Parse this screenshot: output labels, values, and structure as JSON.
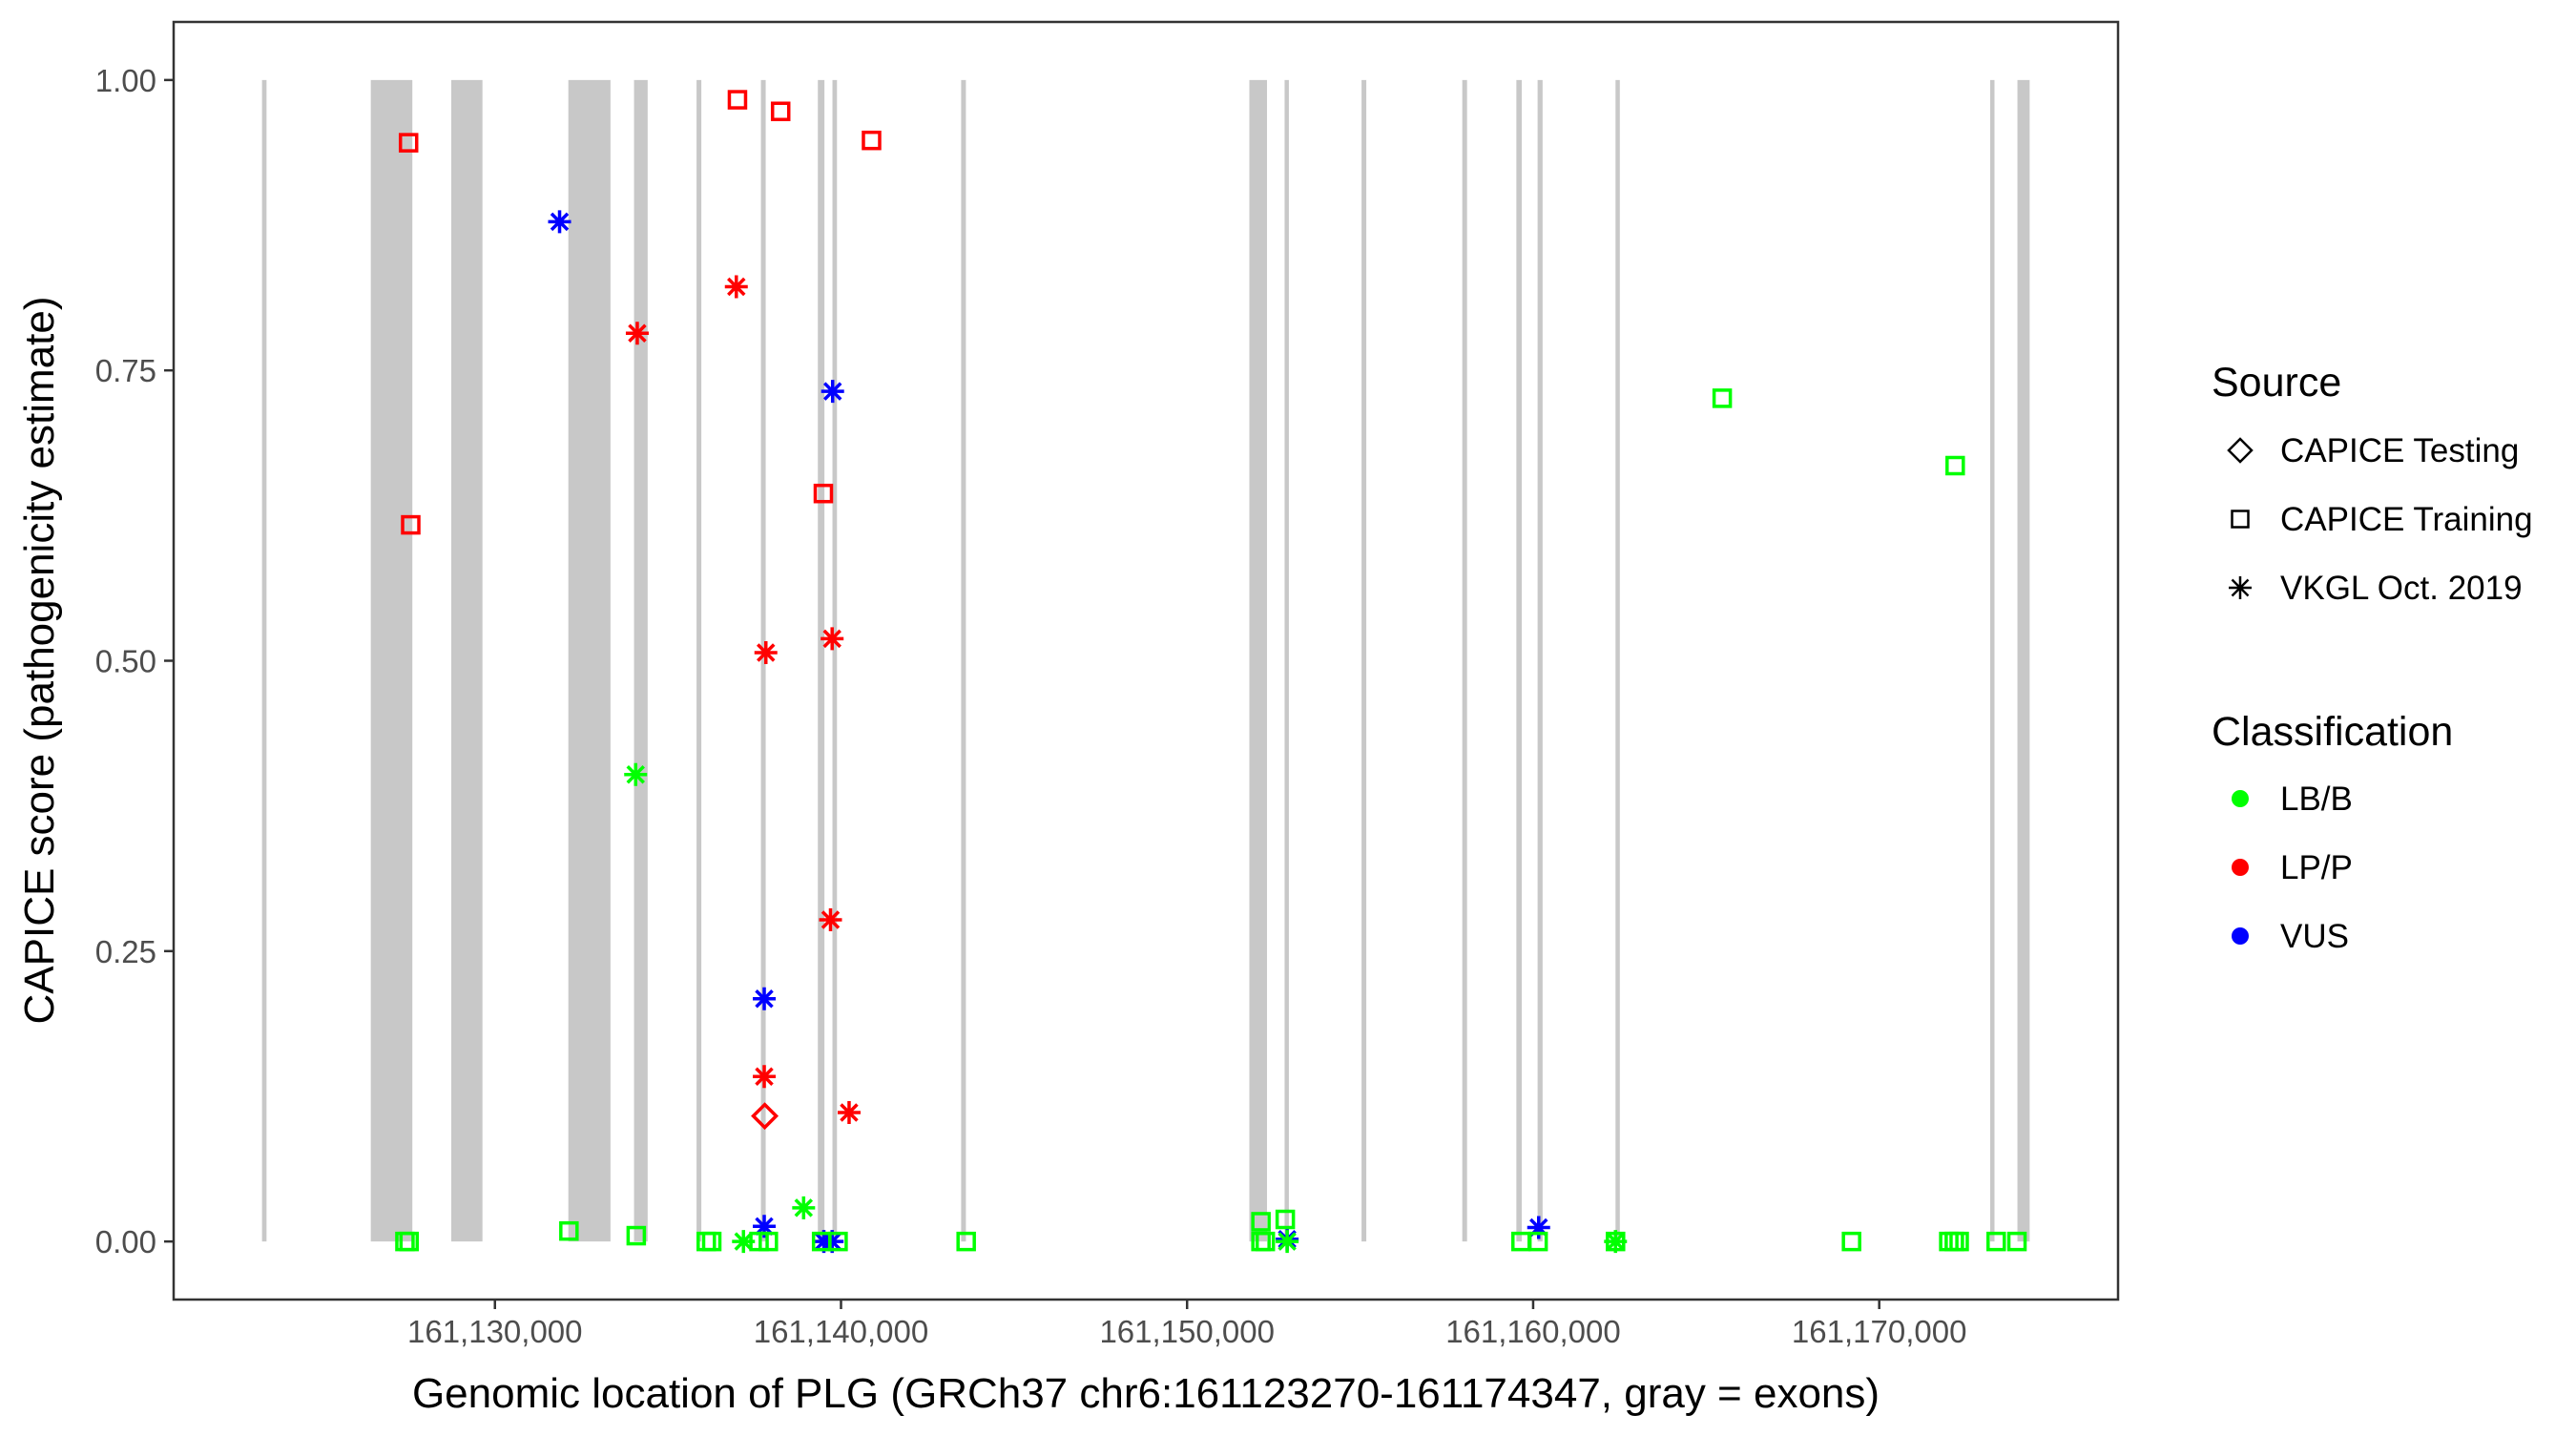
{
  "chart_data": {
    "type": "scatter",
    "xlabel": "Genomic location of PLG (GRCh37 chr6:161123270-161174347, gray = exons)",
    "ylabel": "CAPICE score (pathogenicity estimate)",
    "xlim": [
      161120716,
      161176901
    ],
    "ylim": [
      -0.05,
      1.05
    ],
    "x_ticks": [
      161130000,
      161140000,
      161150000,
      161160000,
      161170000
    ],
    "x_tick_labels": [
      "161,130,000",
      "161,140,000",
      "161,150,000",
      "161,160,000",
      "161,170,000"
    ],
    "y_ticks": [
      0,
      0.25,
      0.5,
      0.75,
      1.0
    ],
    "y_tick_labels": [
      "0.00",
      "0.25",
      "0.50",
      "0.75",
      "1.00"
    ],
    "grid": false,
    "exon_color": "#c8c8c8",
    "exons": [
      [
        161123270,
        161123400
      ],
      [
        161126413,
        161127614
      ],
      [
        161128738,
        161129639
      ],
      [
        161132121,
        161133339
      ],
      [
        161134019,
        161134413
      ],
      [
        161135840,
        161135950
      ],
      [
        161137686,
        161137824
      ],
      [
        161139331,
        161139521
      ],
      [
        161139752,
        161139884
      ],
      [
        161143471,
        161143609
      ],
      [
        161151799,
        161152309
      ],
      [
        161152818,
        161152942
      ],
      [
        161155055,
        161155165
      ],
      [
        161157970,
        161158072
      ],
      [
        161159515,
        161159670
      ],
      [
        161160129,
        161160273
      ],
      [
        161162380,
        161162504
      ],
      [
        161173207,
        161173331
      ],
      [
        161173994,
        161174347
      ]
    ],
    "legend": {
      "position": "right",
      "source_title": "Source",
      "source_items": [
        {
          "label": "CAPICE Testing",
          "shape": "diamond"
        },
        {
          "label": "CAPICE Training",
          "shape": "square"
        },
        {
          "label": "VKGL Oct. 2019",
          "shape": "asterisk"
        }
      ],
      "class_title": "Classification",
      "class_items": [
        {
          "label": "LB/B",
          "color": "#00ff00"
        },
        {
          "label": "LP/P",
          "color": "#ff0000"
        },
        {
          "label": "VUS",
          "color": "#0000ff"
        }
      ]
    },
    "points": [
      {
        "x": 161127504,
        "y": 0.946,
        "source": "CAPICE Training",
        "class": "LP/P"
      },
      {
        "x": 161137008,
        "y": 0.983,
        "source": "CAPICE Training",
        "class": "LP/P"
      },
      {
        "x": 161138256,
        "y": 0.973,
        "source": "CAPICE Training",
        "class": "LP/P"
      },
      {
        "x": 161140882,
        "y": 0.948,
        "source": "CAPICE Training",
        "class": "LP/P"
      },
      {
        "x": 161127567,
        "y": 0.617,
        "source": "CAPICE Training",
        "class": "LP/P"
      },
      {
        "x": 161139490,
        "y": 0.644,
        "source": "CAPICE Training",
        "class": "LP/P"
      },
      {
        "x": 161136975,
        "y": 0.822,
        "source": "VKGL Oct. 2019",
        "class": "LP/P"
      },
      {
        "x": 161134113,
        "y": 0.782,
        "source": "VKGL Oct. 2019",
        "class": "LP/P"
      },
      {
        "x": 161137829,
        "y": 0.507,
        "source": "VKGL Oct. 2019",
        "class": "LP/P"
      },
      {
        "x": 161139744,
        "y": 0.519,
        "source": "VKGL Oct. 2019",
        "class": "LP/P"
      },
      {
        "x": 161139697,
        "y": 0.277,
        "source": "VKGL Oct. 2019",
        "class": "LP/P"
      },
      {
        "x": 161137782,
        "y": 0.142,
        "source": "VKGL Oct. 2019",
        "class": "LP/P"
      },
      {
        "x": 161140234,
        "y": 0.111,
        "source": "VKGL Oct. 2019",
        "class": "LP/P"
      },
      {
        "x": 161137796,
        "y": 0.108,
        "source": "CAPICE Testing",
        "class": "LP/P"
      },
      {
        "x": 161131868,
        "y": 0.878,
        "source": "VKGL Oct. 2019",
        "class": "VUS"
      },
      {
        "x": 161139758,
        "y": 0.732,
        "source": "VKGL Oct. 2019",
        "class": "VUS"
      },
      {
        "x": 161137782,
        "y": 0.209,
        "source": "VKGL Oct. 2019",
        "class": "VUS"
      },
      {
        "x": 161137782,
        "y": 0.013,
        "source": "VKGL Oct. 2019",
        "class": "VUS"
      },
      {
        "x": 161139504,
        "y": 0.0,
        "source": "VKGL Oct. 2019",
        "class": "VUS"
      },
      {
        "x": 161139744,
        "y": 0.0,
        "source": "VKGL Oct. 2019",
        "class": "VUS"
      },
      {
        "x": 161152892,
        "y": 0.002,
        "source": "VKGL Oct. 2019",
        "class": "VUS"
      },
      {
        "x": 161160160,
        "y": 0.012,
        "source": "VKGL Oct. 2019",
        "class": "VUS"
      },
      {
        "x": 161134066,
        "y": 0.402,
        "source": "VKGL Oct. 2019",
        "class": "LB/B"
      },
      {
        "x": 161138920,
        "y": 0.029,
        "source": "VKGL Oct. 2019",
        "class": "LB/B"
      },
      {
        "x": 161137182,
        "y": 0.0,
        "source": "VKGL Oct. 2019",
        "class": "LB/B"
      },
      {
        "x": 161152892,
        "y": 0.0,
        "source": "VKGL Oct. 2019",
        "class": "LB/B"
      },
      {
        "x": 161162380,
        "y": 0.0,
        "source": "VKGL Oct. 2019",
        "class": "LB/B"
      },
      {
        "x": 161127400,
        "y": 0.0,
        "source": "CAPICE Training",
        "class": "LB/B"
      },
      {
        "x": 161127520,
        "y": 0.0,
        "source": "CAPICE Training",
        "class": "LB/B"
      },
      {
        "x": 161132138,
        "y": 0.009,
        "source": "CAPICE Training",
        "class": "LB/B"
      },
      {
        "x": 161134083,
        "y": 0.005,
        "source": "CAPICE Training",
        "class": "LB/B"
      },
      {
        "x": 161136107,
        "y": 0.0,
        "source": "CAPICE Training",
        "class": "LB/B"
      },
      {
        "x": 161136265,
        "y": 0.0,
        "source": "CAPICE Training",
        "class": "LB/B"
      },
      {
        "x": 161137631,
        "y": 0.0,
        "source": "CAPICE Training",
        "class": "LB/B"
      },
      {
        "x": 161137900,
        "y": 0.0,
        "source": "CAPICE Training",
        "class": "LB/B"
      },
      {
        "x": 161139440,
        "y": 0.0,
        "source": "CAPICE Training",
        "class": "LB/B"
      },
      {
        "x": 161139915,
        "y": 0.0,
        "source": "CAPICE Training",
        "class": "LB/B"
      },
      {
        "x": 161143617,
        "y": 0.0,
        "source": "CAPICE Training",
        "class": "LB/B"
      },
      {
        "x": 161152135,
        "y": 0.017,
        "source": "CAPICE Training",
        "class": "LB/B"
      },
      {
        "x": 161152135,
        "y": 0.0,
        "source": "CAPICE Training",
        "class": "LB/B"
      },
      {
        "x": 161152260,
        "y": 0.0,
        "source": "CAPICE Training",
        "class": "LB/B"
      },
      {
        "x": 161152837,
        "y": 0.019,
        "source": "CAPICE Training",
        "class": "LB/B"
      },
      {
        "x": 161159650,
        "y": 0.0,
        "source": "CAPICE Training",
        "class": "LB/B"
      },
      {
        "x": 161160143,
        "y": 0.0,
        "source": "CAPICE Training",
        "class": "LB/B"
      },
      {
        "x": 161162380,
        "y": 0.0,
        "source": "CAPICE Training",
        "class": "LB/B"
      },
      {
        "x": 161165463,
        "y": 0.726,
        "source": "CAPICE Training",
        "class": "LB/B"
      },
      {
        "x": 161172195,
        "y": 0.668,
        "source": "CAPICE Training",
        "class": "LB/B"
      },
      {
        "x": 161169200,
        "y": 0.0,
        "source": "CAPICE Training",
        "class": "LB/B"
      },
      {
        "x": 161172010,
        "y": 0.0,
        "source": "CAPICE Training",
        "class": "LB/B"
      },
      {
        "x": 161172170,
        "y": 0.0,
        "source": "CAPICE Training",
        "class": "LB/B"
      },
      {
        "x": 161172310,
        "y": 0.0,
        "source": "CAPICE Training",
        "class": "LB/B"
      },
      {
        "x": 161173380,
        "y": 0.0,
        "source": "CAPICE Training",
        "class": "LB/B"
      },
      {
        "x": 161173980,
        "y": 0.0,
        "source": "CAPICE Training",
        "class": "LB/B"
      }
    ]
  }
}
